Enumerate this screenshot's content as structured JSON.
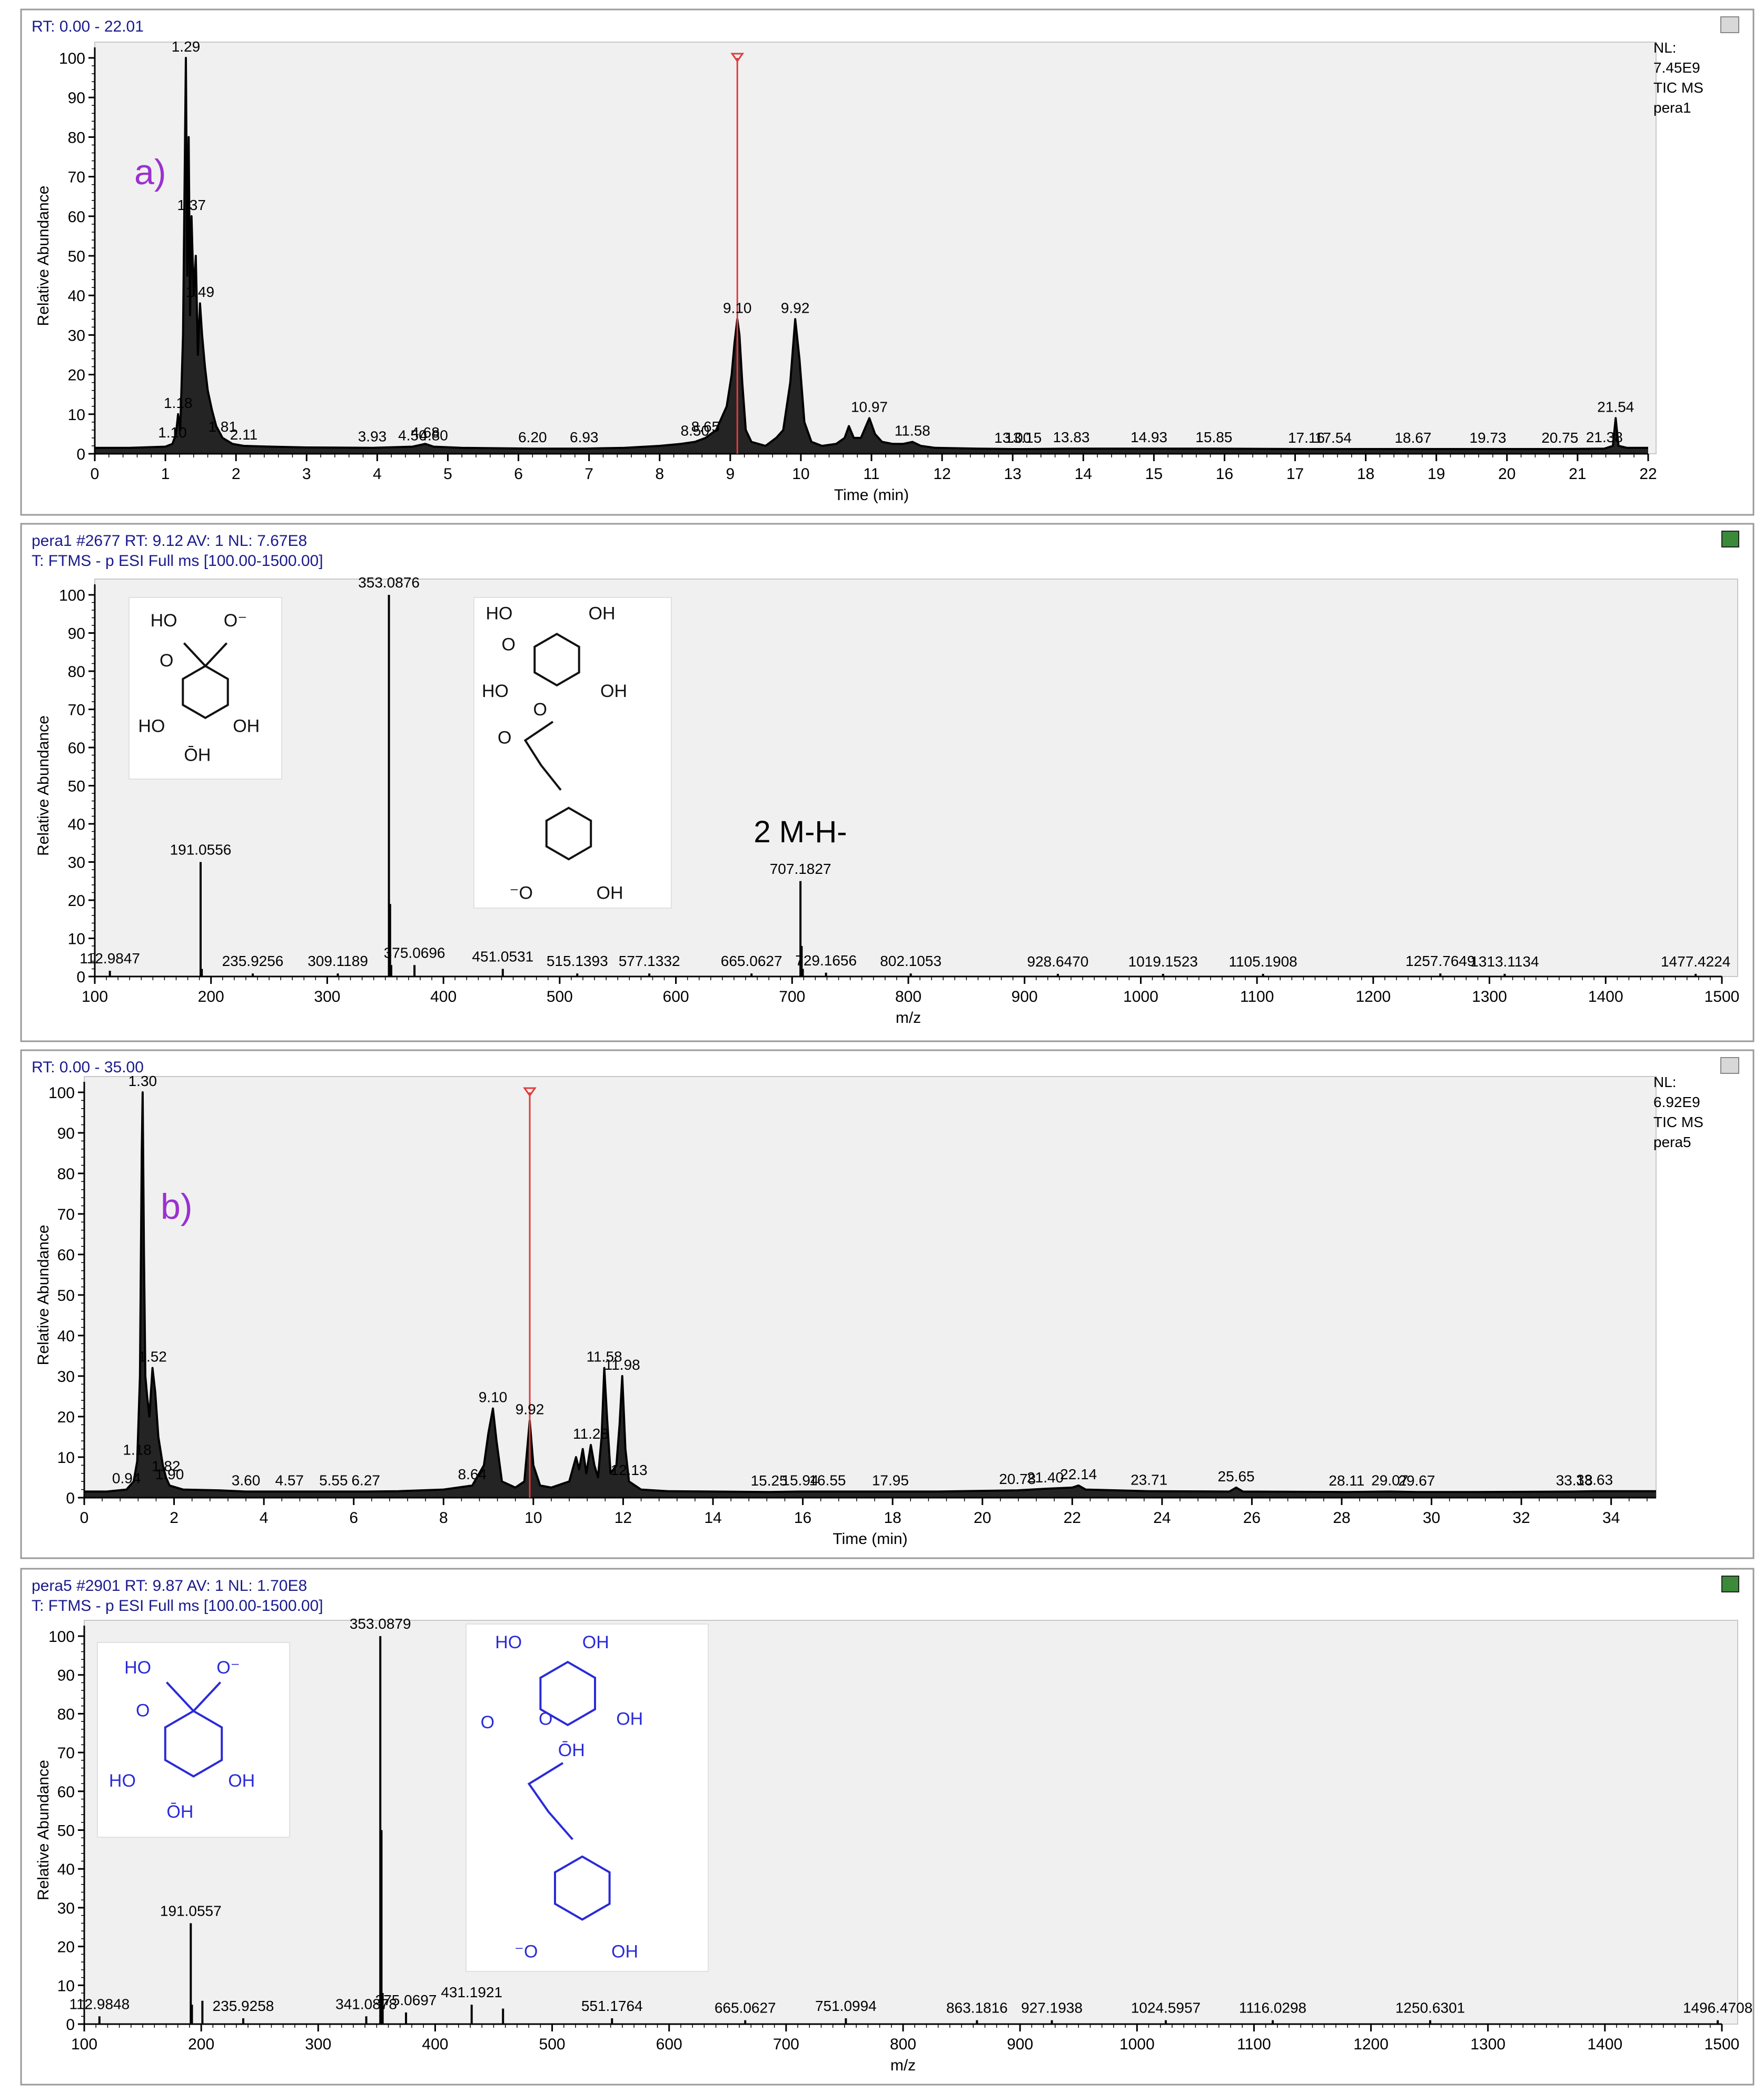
{
  "chart_data": [
    {
      "type": "line",
      "header": "RT: 0.00 - 22.01",
      "panel_letter": "a)",
      "info_lines": [
        "NL:",
        "7.45E9",
        "TIC  MS",
        "pera1"
      ],
      "xlabel": "Time (min)",
      "ylabel": "Relative Abundance",
      "xlim": [
        0,
        22
      ],
      "ylim": [
        0,
        100
      ],
      "xticks": [
        0,
        1,
        2,
        3,
        4,
        5,
        6,
        7,
        8,
        9,
        10,
        11,
        12,
        13,
        14,
        15,
        16,
        17,
        18,
        19,
        20,
        21,
        22
      ],
      "yticks": [
        0,
        10,
        20,
        30,
        40,
        50,
        60,
        70,
        80,
        90,
        100
      ],
      "marker_x": 9.1,
      "series": [
        {
          "x": [
            0,
            0.5,
            1.0,
            1.1,
            1.15,
            1.18,
            1.21,
            1.25,
            1.29,
            1.31,
            1.33,
            1.35,
            1.37,
            1.4,
            1.43,
            1.46,
            1.49,
            1.52,
            1.56,
            1.6,
            1.66,
            1.72,
            1.81,
            1.95,
            2.11,
            2.5,
            3.0,
            3.93,
            4.5,
            4.68,
            4.8,
            5.2,
            6.2,
            6.93,
            7.5,
            8.0,
            8.3,
            8.5,
            8.65,
            8.8,
            8.95,
            9.02,
            9.06,
            9.1,
            9.13,
            9.17,
            9.22,
            9.3,
            9.5,
            9.65,
            9.75,
            9.85,
            9.92,
            9.98,
            10.05,
            10.15,
            10.3,
            10.5,
            10.62,
            10.68,
            10.75,
            10.85,
            10.97,
            11.05,
            11.15,
            11.3,
            11.45,
            11.58,
            11.7,
            11.9,
            12.5,
            13.0,
            13.15,
            13.83,
            14.93,
            15.85,
            17.16,
            17.54,
            18.67,
            19.73,
            20.75,
            21.38,
            21.5,
            21.54,
            21.58,
            21.7,
            22.0
          ],
          "y": [
            1.5,
            1.5,
            1.8,
            2.5,
            5,
            10,
            6,
            30,
            100,
            45,
            80,
            35,
            60,
            40,
            50,
            25,
            38,
            30,
            22,
            16,
            11,
            7,
            4,
            2.5,
            2,
            1.8,
            1.6,
            1.5,
            1.8,
            2.5,
            1.8,
            1.5,
            1.3,
            1.3,
            1.5,
            2,
            2.5,
            3,
            4,
            6,
            12,
            20,
            28,
            34,
            30,
            18,
            6,
            3,
            2,
            4,
            6,
            18,
            34,
            24,
            8,
            3,
            2,
            2.5,
            4,
            7,
            4,
            4,
            9,
            5,
            3,
            2.5,
            2.5,
            3,
            2,
            1.5,
            1.3,
            1.2,
            1.2,
            1.3,
            1.3,
            1.3,
            1.2,
            1.2,
            1.2,
            1.2,
            1.2,
            1.3,
            2,
            9,
            2,
            1.5,
            1.5
          ]
        }
      ],
      "annotations": [
        {
          "x": 1.29,
          "y": 100,
          "label": "1.29"
        },
        {
          "x": 1.37,
          "y": 60,
          "label": "1.37"
        },
        {
          "x": 1.49,
          "y": 38,
          "label": "1.49"
        },
        {
          "x": 1.18,
          "y": 10,
          "label": "1.18"
        },
        {
          "x": 1.1,
          "y": 2.5,
          "label": "1.10"
        },
        {
          "x": 1.81,
          "y": 4,
          "label": "1.81"
        },
        {
          "x": 2.11,
          "y": 2,
          "label": "2.11"
        },
        {
          "x": 3.93,
          "y": 1.5,
          "label": "3.93"
        },
        {
          "x": 4.5,
          "y": 1.8,
          "label": "4.50"
        },
        {
          "x": 4.68,
          "y": 2.5,
          "label": "4.68"
        },
        {
          "x": 4.8,
          "y": 1.8,
          "label": "4.80"
        },
        {
          "x": 6.2,
          "y": 1.3,
          "label": "6.20"
        },
        {
          "x": 6.93,
          "y": 1.3,
          "label": "6.93"
        },
        {
          "x": 8.5,
          "y": 3,
          "label": "8.50"
        },
        {
          "x": 8.65,
          "y": 4,
          "label": "8.65"
        },
        {
          "x": 9.1,
          "y": 34,
          "label": "9.10"
        },
        {
          "x": 9.92,
          "y": 34,
          "label": "9.92"
        },
        {
          "x": 10.97,
          "y": 9,
          "label": "10.97"
        },
        {
          "x": 11.58,
          "y": 3,
          "label": "11.58"
        },
        {
          "x": 13.0,
          "y": 1.2,
          "label": "13.00"
        },
        {
          "x": 13.15,
          "y": 1.2,
          "label": "13.15"
        },
        {
          "x": 13.83,
          "y": 1.3,
          "label": "13.83"
        },
        {
          "x": 14.93,
          "y": 1.3,
          "label": "14.93"
        },
        {
          "x": 15.85,
          "y": 1.3,
          "label": "15.85"
        },
        {
          "x": 17.16,
          "y": 1.2,
          "label": "17.16"
        },
        {
          "x": 17.54,
          "y": 1.2,
          "label": "17.54"
        },
        {
          "x": 18.67,
          "y": 1.2,
          "label": "18.67"
        },
        {
          "x": 19.73,
          "y": 1.2,
          "label": "19.73"
        },
        {
          "x": 20.75,
          "y": 1.2,
          "label": "20.75"
        },
        {
          "x": 21.38,
          "y": 1.3,
          "label": "21.38"
        },
        {
          "x": 21.54,
          "y": 9,
          "label": "21.54"
        }
      ]
    },
    {
      "type": "bar",
      "header": "pera1 #2677   RT: 9.12   AV: 1   NL: 7.67E8",
      "header2": "T: FTMS - p ESI Full ms [100.00-1500.00]",
      "xlabel": "m/z",
      "ylabel": "Relative Abundance",
      "xlim": [
        100,
        1500
      ],
      "ylim": [
        0,
        100
      ],
      "xticks": [
        100,
        200,
        300,
        400,
        500,
        600,
        700,
        800,
        900,
        1000,
        1100,
        1200,
        1300,
        1400,
        1500
      ],
      "yticks": [
        0,
        10,
        20,
        30,
        40,
        50,
        60,
        70,
        80,
        90,
        100
      ],
      "peaks": [
        {
          "x": 112.9847,
          "y": 1.5,
          "label": "112.9847"
        },
        {
          "x": 191.0556,
          "y": 30,
          "label": "191.0556"
        },
        {
          "x": 192.06,
          "y": 2
        },
        {
          "x": 235.9256,
          "y": 0.8,
          "label": "235.9256"
        },
        {
          "x": 309.1189,
          "y": 0.8,
          "label": "309.1189"
        },
        {
          "x": 353.0876,
          "y": 100,
          "label": "353.0876"
        },
        {
          "x": 354.09,
          "y": 19
        },
        {
          "x": 355.09,
          "y": 3
        },
        {
          "x": 375.0696,
          "y": 3,
          "label": "375.0696"
        },
        {
          "x": 451.0531,
          "y": 2,
          "label": "451.0531"
        },
        {
          "x": 515.1393,
          "y": 0.8,
          "label": "515.1393"
        },
        {
          "x": 577.1332,
          "y": 0.8,
          "label": "577.1332"
        },
        {
          "x": 665.0627,
          "y": 0.8,
          "label": "665.0627"
        },
        {
          "x": 707.1827,
          "y": 25,
          "label": "707.1827"
        },
        {
          "x": 708.19,
          "y": 8
        },
        {
          "x": 709.19,
          "y": 2
        },
        {
          "x": 729.1656,
          "y": 1,
          "label": "729.1656"
        },
        {
          "x": 802.1053,
          "y": 0.8,
          "label": "802.1053"
        },
        {
          "x": 928.647,
          "y": 0.7,
          "label": "928.6470"
        },
        {
          "x": 1019.1523,
          "y": 0.7,
          "label": "1019.1523"
        },
        {
          "x": 1105.1908,
          "y": 0.7,
          "label": "1105.1908"
        },
        {
          "x": 1257.7649,
          "y": 0.8,
          "label": "1257.7649"
        },
        {
          "x": 1313.1134,
          "y": 0.7,
          "label": "1313.1134"
        },
        {
          "x": 1477.4224,
          "y": 0.7,
          "label": "1477.4224"
        }
      ],
      "annotation_text": "2 M-H-",
      "structure_labels": {
        "quinate": [
          "HO",
          "O⁻",
          "O",
          "HO",
          "OH",
          "ŌH"
        ],
        "chlorogenate": [
          "HO",
          "OH",
          "O",
          "HO",
          "O",
          "OH",
          "O",
          "⁻O",
          "OH"
        ]
      }
    },
    {
      "type": "line",
      "header": "RT: 0.00 - 35.00",
      "panel_letter": "b)",
      "info_lines": [
        "NL:",
        "6.92E9",
        "TIC  MS",
        "pera5"
      ],
      "xlabel": "Time (min)",
      "ylabel": "Relative Abundance",
      "xlim": [
        0,
        35
      ],
      "ylim": [
        0,
        100
      ],
      "xticks": [
        0,
        2,
        4,
        6,
        8,
        10,
        12,
        14,
        16,
        18,
        20,
        22,
        24,
        26,
        28,
        30,
        32,
        34
      ],
      "yticks": [
        0,
        10,
        20,
        30,
        40,
        50,
        60,
        70,
        80,
        90,
        100
      ],
      "marker_x": 9.92,
      "series": [
        {
          "x": [
            0,
            0.5,
            0.94,
            1.1,
            1.18,
            1.24,
            1.28,
            1.3,
            1.33,
            1.36,
            1.4,
            1.45,
            1.52,
            1.58,
            1.65,
            1.75,
            1.82,
            1.9,
            2.2,
            3.0,
            3.6,
            4.57,
            5.55,
            6.27,
            7.0,
            8.0,
            8.64,
            8.9,
            9.0,
            9.1,
            9.18,
            9.3,
            9.6,
            9.8,
            9.92,
            10.0,
            10.15,
            10.4,
            10.8,
            10.95,
            11.02,
            11.1,
            11.18,
            11.28,
            11.36,
            11.44,
            11.52,
            11.58,
            11.64,
            11.72,
            11.85,
            11.92,
            11.98,
            12.05,
            12.13,
            12.4,
            13.0,
            14.0,
            15.25,
            15.94,
            16.55,
            17.95,
            19.0,
            20.78,
            21.4,
            22.0,
            22.14,
            22.3,
            23.71,
            25.5,
            25.65,
            25.8,
            28.11,
            29.07,
            29.67,
            31.0,
            33.18,
            33.63,
            34.5,
            35.0
          ],
          "y": [
            1.5,
            1.5,
            2,
            4,
            9,
            30,
            85,
            100,
            60,
            30,
            25,
            20,
            32,
            26,
            15,
            8,
            5,
            3,
            2,
            1.8,
            1.5,
            1.5,
            1.5,
            1.5,
            1.6,
            2,
            3,
            8,
            16,
            22,
            14,
            4,
            2.5,
            4,
            19,
            8,
            3,
            2.5,
            4,
            10,
            7,
            12,
            6,
            13,
            8,
            5,
            15,
            32,
            20,
            6,
            8,
            18,
            30,
            12,
            4,
            2,
            1.6,
            1.5,
            1.4,
            1.5,
            1.5,
            1.5,
            1.5,
            1.8,
            2.2,
            2.5,
            3,
            2,
            1.6,
            1.5,
            2.5,
            1.5,
            1.4,
            1.5,
            1.4,
            1.4,
            1.5,
            1.6,
            1.6,
            1.6
          ]
        }
      ],
      "annotations": [
        {
          "x": 1.3,
          "y": 100,
          "label": "1.30"
        },
        {
          "x": 1.52,
          "y": 32,
          "label": "1.52"
        },
        {
          "x": 1.18,
          "y": 9,
          "label": "1.18"
        },
        {
          "x": 0.94,
          "y": 2,
          "label": "0.94"
        },
        {
          "x": 1.82,
          "y": 5,
          "label": "1.82"
        },
        {
          "x": 1.9,
          "y": 3,
          "label": "1.90"
        },
        {
          "x": 3.6,
          "y": 1.5,
          "label": "3.60"
        },
        {
          "x": 4.57,
          "y": 1.5,
          "label": "4.57"
        },
        {
          "x": 5.55,
          "y": 1.5,
          "label": "5.55"
        },
        {
          "x": 6.27,
          "y": 1.5,
          "label": "6.27"
        },
        {
          "x": 8.64,
          "y": 3,
          "label": "8.64"
        },
        {
          "x": 9.1,
          "y": 22,
          "label": "9.10"
        },
        {
          "x": 9.92,
          "y": 19,
          "label": "9.92"
        },
        {
          "x": 11.28,
          "y": 13,
          "label": "11.28"
        },
        {
          "x": 11.58,
          "y": 32,
          "label": "11.58"
        },
        {
          "x": 11.98,
          "y": 30,
          "label": "11.98"
        },
        {
          "x": 12.13,
          "y": 4,
          "label": "12.13"
        },
        {
          "x": 15.25,
          "y": 1.4,
          "label": "15.25"
        },
        {
          "x": 15.94,
          "y": 1.5,
          "label": "15.94"
        },
        {
          "x": 16.55,
          "y": 1.5,
          "label": "16.55"
        },
        {
          "x": 17.95,
          "y": 1.5,
          "label": "17.95"
        },
        {
          "x": 20.78,
          "y": 1.8,
          "label": "20.78"
        },
        {
          "x": 21.4,
          "y": 2.2,
          "label": "21.40"
        },
        {
          "x": 22.14,
          "y": 3,
          "label": "22.14"
        },
        {
          "x": 23.71,
          "y": 1.6,
          "label": "23.71"
        },
        {
          "x": 25.65,
          "y": 2.5,
          "label": "25.65"
        },
        {
          "x": 28.11,
          "y": 1.4,
          "label": "28.11"
        },
        {
          "x": 29.07,
          "y": 1.5,
          "label": "29.07"
        },
        {
          "x": 29.67,
          "y": 1.4,
          "label": "29.67"
        },
        {
          "x": 33.18,
          "y": 1.5,
          "label": "33.18"
        },
        {
          "x": 33.63,
          "y": 1.6,
          "label": "33.63"
        }
      ]
    },
    {
      "type": "bar",
      "header": "pera5 #2901   RT: 9.87   AV: 1   NL: 1.70E8",
      "header2": "T: FTMS - p ESI Full ms [100.00-1500.00]",
      "xlabel": "m/z",
      "ylabel": "Relative Abundance",
      "xlim": [
        100,
        1500
      ],
      "ylim": [
        0,
        100
      ],
      "xticks": [
        100,
        200,
        300,
        400,
        500,
        600,
        700,
        800,
        900,
        1000,
        1100,
        1200,
        1300,
        1400,
        1500
      ],
      "yticks": [
        0,
        10,
        20,
        30,
        40,
        50,
        60,
        70,
        80,
        90,
        100
      ],
      "peaks": [
        {
          "x": 112.9848,
          "y": 2,
          "label": "112.9848"
        },
        {
          "x": 191.0557,
          "y": 26,
          "label": "191.0557"
        },
        {
          "x": 192.06,
          "y": 5
        },
        {
          "x": 201.0,
          "y": 6
        },
        {
          "x": 235.9258,
          "y": 1.5,
          "label": "235.9258"
        },
        {
          "x": 341.0878,
          "y": 2,
          "label": "341.0878"
        },
        {
          "x": 353.0879,
          "y": 100,
          "label": "353.0879"
        },
        {
          "x": 354.09,
          "y": 50
        },
        {
          "x": 355.09,
          "y": 8
        },
        {
          "x": 375.0697,
          "y": 3,
          "label": "375.0697"
        },
        {
          "x": 431.1921,
          "y": 5,
          "label": "431.1921"
        },
        {
          "x": 458.0,
          "y": 4
        },
        {
          "x": 551.1764,
          "y": 1.5,
          "label": "551.1764"
        },
        {
          "x": 665.0627,
          "y": 1,
          "label": "665.0627"
        },
        {
          "x": 751.0994,
          "y": 1.5,
          "label": "751.0994"
        },
        {
          "x": 863.1816,
          "y": 1,
          "label": "863.1816"
        },
        {
          "x": 927.1938,
          "y": 1,
          "label": "927.1938"
        },
        {
          "x": 1024.5957,
          "y": 1,
          "label": "1024.5957"
        },
        {
          "x": 1116.0298,
          "y": 1,
          "label": "1116.0298"
        },
        {
          "x": 1250.6301,
          "y": 1,
          "label": "1250.6301"
        },
        {
          "x": 1496.4708,
          "y": 1,
          "label": "1496.4708"
        }
      ],
      "structure_labels": {
        "quinate": [
          "HO",
          "O⁻",
          "O",
          "HO",
          "OH",
          "ŌH"
        ],
        "chlorogenate": [
          "HO",
          "OH",
          "O",
          "O",
          "OH",
          "ŌH",
          "⁻O",
          "OH"
        ]
      }
    }
  ]
}
